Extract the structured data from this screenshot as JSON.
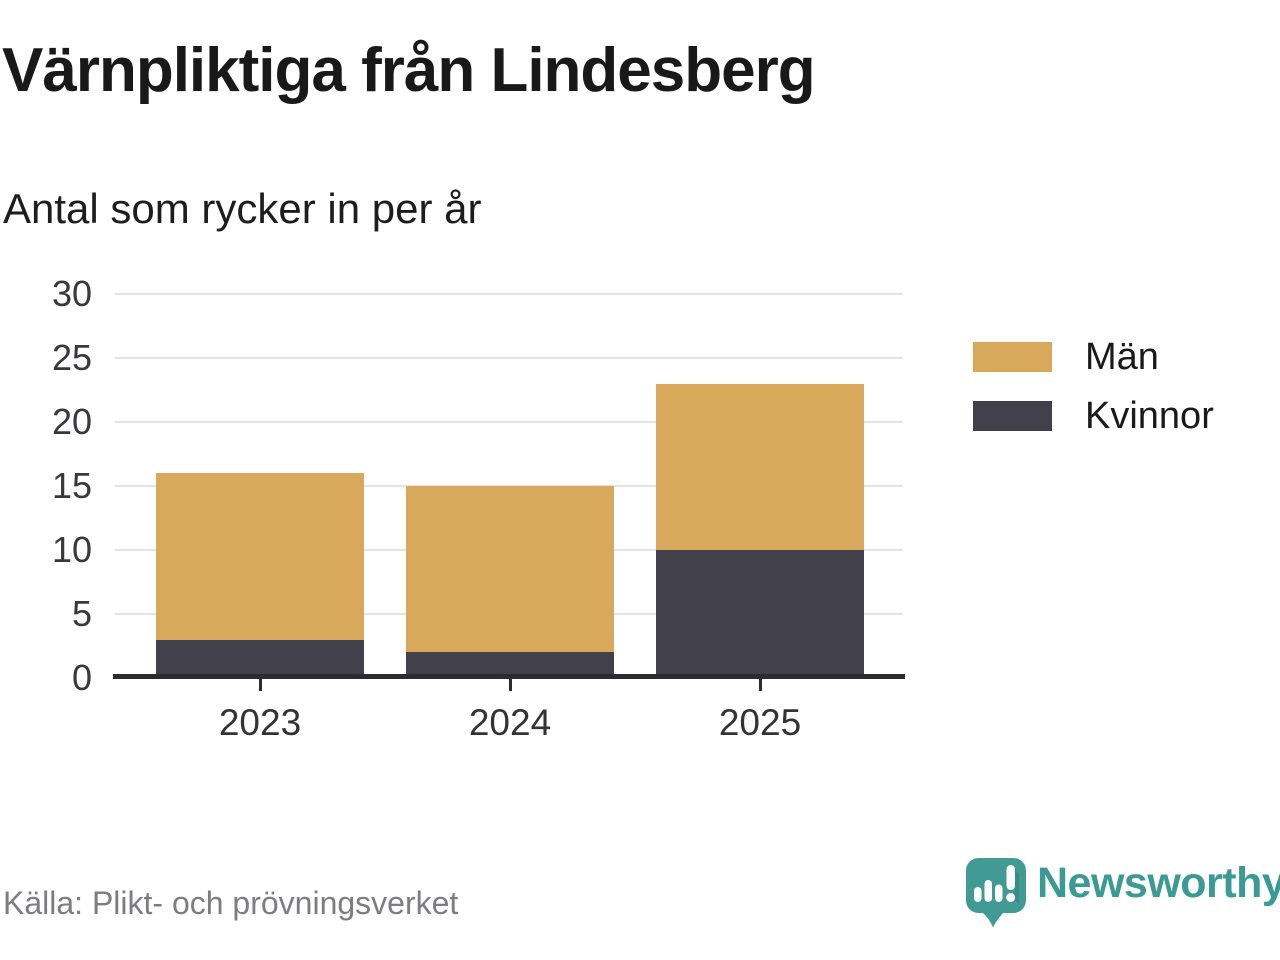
{
  "chart_data": {
    "type": "bar",
    "stacked": true,
    "title": "Värnpliktiga från Lindesberg",
    "subtitle": "Antal som rycker in per år",
    "categories": [
      "2023",
      "2024",
      "2025"
    ],
    "series": [
      {
        "name": "Män",
        "color": "#D9A95B",
        "values": [
          13,
          13,
          13
        ]
      },
      {
        "name": "Kvinnor",
        "color": "#42404B",
        "values": [
          3,
          2,
          10
        ]
      }
    ],
    "stack_bottom_to_top": [
      "Kvinnor",
      "Män"
    ],
    "stacked_totals": [
      16,
      15,
      23
    ],
    "ylim": [
      0,
      30
    ],
    "yticks": [
      0,
      5,
      10,
      15,
      20,
      25,
      30
    ],
    "xlabel": "",
    "ylabel": "",
    "grid": "horizontal",
    "legend_position": "right"
  },
  "footer": {
    "source": "Källa: Plikt- och prövningsverket",
    "brand": "Newsworthy",
    "brand_color": "#3b9a93",
    "icon": "newsworthy-speech-bubble-bar-chart-icon"
  }
}
